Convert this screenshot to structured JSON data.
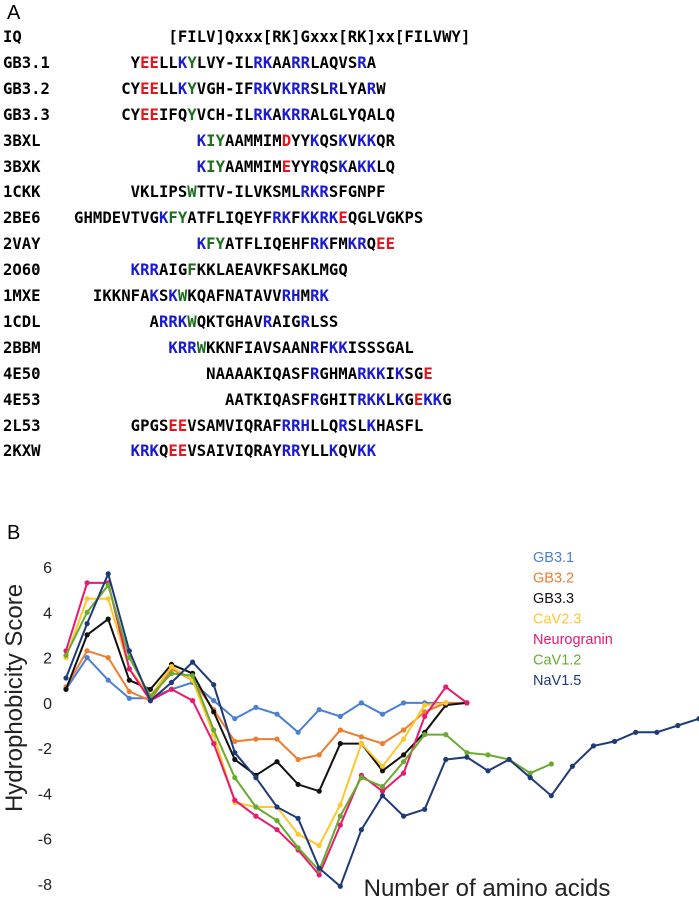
{
  "panel_a": {
    "letter": "A",
    "rows": [
      {
        "label": "IQ",
        "offset": 0,
        "segments": [
          {
            "t": "          [FILV]Qxxx[RK]Gxxx[RK]xx[FILVWY]",
            "c": "k"
          }
        ]
      },
      {
        "label": "GB3.1",
        "offset": 0,
        "segments": [
          {
            "t": "      Y",
            "c": "k"
          },
          {
            "t": "EE",
            "c": "r"
          },
          {
            "t": "LL",
            "c": "k"
          },
          {
            "t": "K",
            "c": "b"
          },
          {
            "t": "Y",
            "c": "g"
          },
          {
            "t": "LVY-IL",
            "c": "k"
          },
          {
            "t": "RK",
            "c": "b"
          },
          {
            "t": "AA",
            "c": "k"
          },
          {
            "t": "RR",
            "c": "b"
          },
          {
            "t": "LAQVS",
            "c": "k"
          },
          {
            "t": "R",
            "c": "b"
          },
          {
            "t": "A",
            "c": "k"
          }
        ]
      },
      {
        "label": "GB3.2",
        "offset": 0,
        "segments": [
          {
            "t": "     CY",
            "c": "k"
          },
          {
            "t": "EE",
            "c": "r"
          },
          {
            "t": "LL",
            "c": "k"
          },
          {
            "t": "K",
            "c": "b"
          },
          {
            "t": "Y",
            "c": "g"
          },
          {
            "t": "VGH-IF",
            "c": "k"
          },
          {
            "t": "RK",
            "c": "b"
          },
          {
            "t": "V",
            "c": "k"
          },
          {
            "t": "KRR",
            "c": "b"
          },
          {
            "t": "SL",
            "c": "k"
          },
          {
            "t": "R",
            "c": "b"
          },
          {
            "t": "LYA",
            "c": "k"
          },
          {
            "t": "R",
            "c": "b"
          },
          {
            "t": "W",
            "c": "k"
          }
        ]
      },
      {
        "label": "GB3.3",
        "offset": 0,
        "segments": [
          {
            "t": "     CY",
            "c": "k"
          },
          {
            "t": "EE",
            "c": "r"
          },
          {
            "t": "IFQ",
            "c": "k"
          },
          {
            "t": "Y",
            "c": "g"
          },
          {
            "t": "VCH-IL",
            "c": "k"
          },
          {
            "t": "RK",
            "c": "b"
          },
          {
            "t": "A",
            "c": "k"
          },
          {
            "t": "KRR",
            "c": "b"
          },
          {
            "t": "ALGLYQALQ",
            "c": "k"
          }
        ]
      },
      {
        "label": "3BXL",
        "offset": 0,
        "segments": [
          {
            "t": "             ",
            "c": "k"
          },
          {
            "t": "K",
            "c": "b"
          },
          {
            "t": "IY",
            "c": "g"
          },
          {
            "t": "AAMMIM",
            "c": "k"
          },
          {
            "t": "D",
            "c": "r"
          },
          {
            "t": "YY",
            "c": "k"
          },
          {
            "t": "K",
            "c": "b"
          },
          {
            "t": "QS",
            "c": "k"
          },
          {
            "t": "K",
            "c": "b"
          },
          {
            "t": "V",
            "c": "k"
          },
          {
            "t": "KK",
            "c": "b"
          },
          {
            "t": "QR",
            "c": "k"
          }
        ]
      },
      {
        "label": "3BXK",
        "offset": 0,
        "segments": [
          {
            "t": "             ",
            "c": "k"
          },
          {
            "t": "K",
            "c": "b"
          },
          {
            "t": "IY",
            "c": "g"
          },
          {
            "t": "AAMMIM",
            "c": "k"
          },
          {
            "t": "E",
            "c": "r"
          },
          {
            "t": "YY",
            "c": "k"
          },
          {
            "t": "R",
            "c": "b"
          },
          {
            "t": "QS",
            "c": "k"
          },
          {
            "t": "K",
            "c": "b"
          },
          {
            "t": "A",
            "c": "k"
          },
          {
            "t": "KK",
            "c": "b"
          },
          {
            "t": "LQ",
            "c": "k"
          }
        ]
      },
      {
        "label": "1CKK",
        "offset": 0,
        "segments": [
          {
            "t": "      VKLIPS",
            "c": "k"
          },
          {
            "t": "W",
            "c": "g"
          },
          {
            "t": "TTV-ILVKSML",
            "c": "k"
          },
          {
            "t": "RKR",
            "c": "b"
          },
          {
            "t": "SFGNPF",
            "c": "k"
          }
        ]
      },
      {
        "label": "2BE6",
        "offset": 0,
        "segments": [
          {
            "t": "GHMDEVTVG",
            "c": "k"
          },
          {
            "t": "K",
            "c": "b"
          },
          {
            "t": "FY",
            "c": "g"
          },
          {
            "t": "ATFLIQEYF",
            "c": "k"
          },
          {
            "t": "RK",
            "c": "b"
          },
          {
            "t": "F",
            "c": "k"
          },
          {
            "t": "KKRK",
            "c": "b"
          },
          {
            "t": "E",
            "c": "r"
          },
          {
            "t": "QGLVGKPS",
            "c": "k"
          }
        ]
      },
      {
        "label": "2VAY",
        "offset": 0,
        "segments": [
          {
            "t": "             ",
            "c": "k"
          },
          {
            "t": "K",
            "c": "b"
          },
          {
            "t": "FY",
            "c": "g"
          },
          {
            "t": "ATFLIQEHF",
            "c": "k"
          },
          {
            "t": "RK",
            "c": "b"
          },
          {
            "t": "FM",
            "c": "k"
          },
          {
            "t": "KR",
            "c": "b"
          },
          {
            "t": "Q",
            "c": "k"
          },
          {
            "t": "EE",
            "c": "r"
          }
        ]
      },
      {
        "label": "2O60",
        "offset": 0,
        "segments": [
          {
            "t": "      ",
            "c": "k"
          },
          {
            "t": "KRR",
            "c": "b"
          },
          {
            "t": "AIG",
            "c": "k"
          },
          {
            "t": "F",
            "c": "g"
          },
          {
            "t": "KKLAEAVKFSAKLMGQ",
            "c": "k"
          }
        ]
      },
      {
        "label": "1MXE",
        "offset": 0,
        "segments": [
          {
            "t": "  IKKNFA",
            "c": "k"
          },
          {
            "t": "K",
            "c": "b"
          },
          {
            "t": "S",
            "c": "k"
          },
          {
            "t": "K",
            "c": "b"
          },
          {
            "t": "W",
            "c": "g"
          },
          {
            "t": "KQAFNATAVV",
            "c": "k"
          },
          {
            "t": "RH",
            "c": "b"
          },
          {
            "t": "M",
            "c": "k"
          },
          {
            "t": "RK",
            "c": "b"
          }
        ]
      },
      {
        "label": "1CDL",
        "offset": 0,
        "segments": [
          {
            "t": "        A",
            "c": "k"
          },
          {
            "t": "RRK",
            "c": "b"
          },
          {
            "t": "W",
            "c": "g"
          },
          {
            "t": "QKTGHAV",
            "c": "k"
          },
          {
            "t": "R",
            "c": "b"
          },
          {
            "t": "AIG",
            "c": "k"
          },
          {
            "t": "R",
            "c": "b"
          },
          {
            "t": "LSS",
            "c": "k"
          }
        ]
      },
      {
        "label": "2BBM",
        "offset": 0,
        "segments": [
          {
            "t": "          ",
            "c": "k"
          },
          {
            "t": "KRR",
            "c": "b"
          },
          {
            "t": "W",
            "c": "g"
          },
          {
            "t": "KKNFIAVSAAN",
            "c": "k"
          },
          {
            "t": "R",
            "c": "b"
          },
          {
            "t": "F",
            "c": "k"
          },
          {
            "t": "KK",
            "c": "b"
          },
          {
            "t": "ISSSGAL",
            "c": "k"
          }
        ]
      },
      {
        "label": "4E50",
        "offset": 0,
        "segments": [
          {
            "t": "              NAAAAKIQASF",
            "c": "k"
          },
          {
            "t": "R",
            "c": "b"
          },
          {
            "t": "GHMA",
            "c": "k"
          },
          {
            "t": "RKK",
            "c": "b"
          },
          {
            "t": "I",
            "c": "k"
          },
          {
            "t": "K",
            "c": "b"
          },
          {
            "t": "SG",
            "c": "k"
          },
          {
            "t": "E",
            "c": "r"
          }
        ]
      },
      {
        "label": "4E53",
        "offset": 0,
        "segments": [
          {
            "t": "                AATKIQASF",
            "c": "k"
          },
          {
            "t": "R",
            "c": "b"
          },
          {
            "t": "GHIT",
            "c": "k"
          },
          {
            "t": "RKK",
            "c": "b"
          },
          {
            "t": "L",
            "c": "k"
          },
          {
            "t": "K",
            "c": "b"
          },
          {
            "t": "G",
            "c": "k"
          },
          {
            "t": "E",
            "c": "r"
          },
          {
            "t": "KK",
            "c": "b"
          },
          {
            "t": "G",
            "c": "k"
          }
        ]
      },
      {
        "label": "2L53",
        "offset": 0,
        "segments": [
          {
            "t": "      GPGS",
            "c": "k"
          },
          {
            "t": "EE",
            "c": "r"
          },
          {
            "t": "VSAMVIQRAF",
            "c": "k"
          },
          {
            "t": "RRH",
            "c": "b"
          },
          {
            "t": "LLQ",
            "c": "k"
          },
          {
            "t": "R",
            "c": "b"
          },
          {
            "t": "SL",
            "c": "k"
          },
          {
            "t": "K",
            "c": "b"
          },
          {
            "t": "HASFL",
            "c": "k"
          }
        ]
      },
      {
        "label": "2KXW",
        "offset": 0,
        "segments": [
          {
            "t": "      ",
            "c": "k"
          },
          {
            "t": "KRK",
            "c": "b"
          },
          {
            "t": "Q",
            "c": "k"
          },
          {
            "t": "EE",
            "c": "r"
          },
          {
            "t": "VSAIVIQRAY",
            "c": "k"
          },
          {
            "t": "RR",
            "c": "b"
          },
          {
            "t": "YLL",
            "c": "k"
          },
          {
            "t": "K",
            "c": "b"
          },
          {
            "t": "QV",
            "c": "k"
          },
          {
            "t": "KK",
            "c": "b"
          }
        ]
      }
    ]
  },
  "colors": {
    "k": "#000000",
    "r": "#e8141c",
    "b": "#1a1ad1",
    "g": "#1e6e1e"
  },
  "panel_b": {
    "letter": "B"
  },
  "chart_data": {
    "type": "line",
    "xlabel": "Number of amino acids",
    "ylabel": "Hydrophobicity Score",
    "ylim": [
      -8,
      6
    ],
    "yticks": [
      6,
      4,
      2,
      0,
      -2,
      -4,
      -6,
      -8
    ],
    "grid": false,
    "legend_position": "top-right",
    "series": [
      {
        "name": "GB3.1",
        "color": "#4a7fd4",
        "values": [
          0.6,
          2.0,
          1.0,
          0.2,
          0.2,
          0.6,
          0.9,
          0.1,
          -0.7,
          -0.2,
          -0.5,
          -1.3,
          -0.3,
          -0.6,
          0.0,
          -0.5,
          0.0,
          0.0,
          0.0
        ]
      },
      {
        "name": "GB3.2",
        "color": "#ee7d2e",
        "values": [
          0.7,
          2.3,
          2.0,
          0.5,
          0.1,
          1.5,
          1.0,
          -0.3,
          -1.7,
          -1.6,
          -1.6,
          -2.5,
          -2.3,
          -1.2,
          -1.5,
          -1.8,
          -1.2,
          -0.4,
          0.0,
          0.0
        ]
      },
      {
        "name": "GB3.3",
        "color": "#111111",
        "values": [
          0.6,
          3.0,
          3.7,
          1.0,
          0.6,
          1.7,
          1.3,
          -0.4,
          -2.5,
          -3.2,
          -2.6,
          -3.6,
          -3.9,
          -1.8,
          -1.8,
          -3.0,
          -2.3,
          -1.3,
          -0.1,
          0.0
        ]
      },
      {
        "name": "CaV2.3",
        "color": "#ffc72c",
        "values": [
          2.0,
          4.6,
          4.6,
          1.5,
          0.3,
          1.6,
          1.0,
          -1.4,
          -4.4,
          -4.6,
          -4.6,
          -5.8,
          -6.3,
          -4.5,
          -1.8,
          -2.8,
          -1.6,
          -0.1,
          0.0
        ]
      },
      {
        "name": "Neurogranin",
        "color": "#e8196e",
        "values": [
          2.3,
          5.3,
          5.3,
          1.5,
          0.1,
          0.6,
          0.1,
          -1.8,
          -4.3,
          -5.0,
          -5.6,
          -6.5,
          -7.6,
          -5.4,
          -3.2,
          -3.9,
          -3.1,
          -0.6,
          0.7,
          0.0
        ]
      },
      {
        "name": "CaV1.2",
        "color": "#6aaa2e",
        "values": [
          2.1,
          4.0,
          5.2,
          2.0,
          0.3,
          1.3,
          1.2,
          -1.2,
          -3.3,
          -4.6,
          -5.2,
          -6.4,
          -7.4,
          -5.0,
          -3.3,
          -3.7,
          -2.6,
          -1.4,
          -1.4,
          -2.2,
          -2.3,
          -2.5,
          -3.1,
          -2.7
        ]
      },
      {
        "name": "NaV1.5",
        "color": "#1f3a78",
        "values": [
          1.1,
          3.5,
          5.7,
          2.3,
          0.1,
          0.9,
          1.8,
          0.8,
          -2.2,
          -3.3,
          -4.6,
          -5.1,
          -7.3,
          -8.1,
          -5.6,
          -4.1,
          -5.0,
          -4.7,
          -2.5,
          -2.4,
          -3.0,
          -2.5,
          -3.3,
          -4.1,
          -2.8,
          -1.9,
          -1.7,
          -1.3,
          -1.3,
          -1.0,
          -0.7
        ]
      }
    ]
  }
}
